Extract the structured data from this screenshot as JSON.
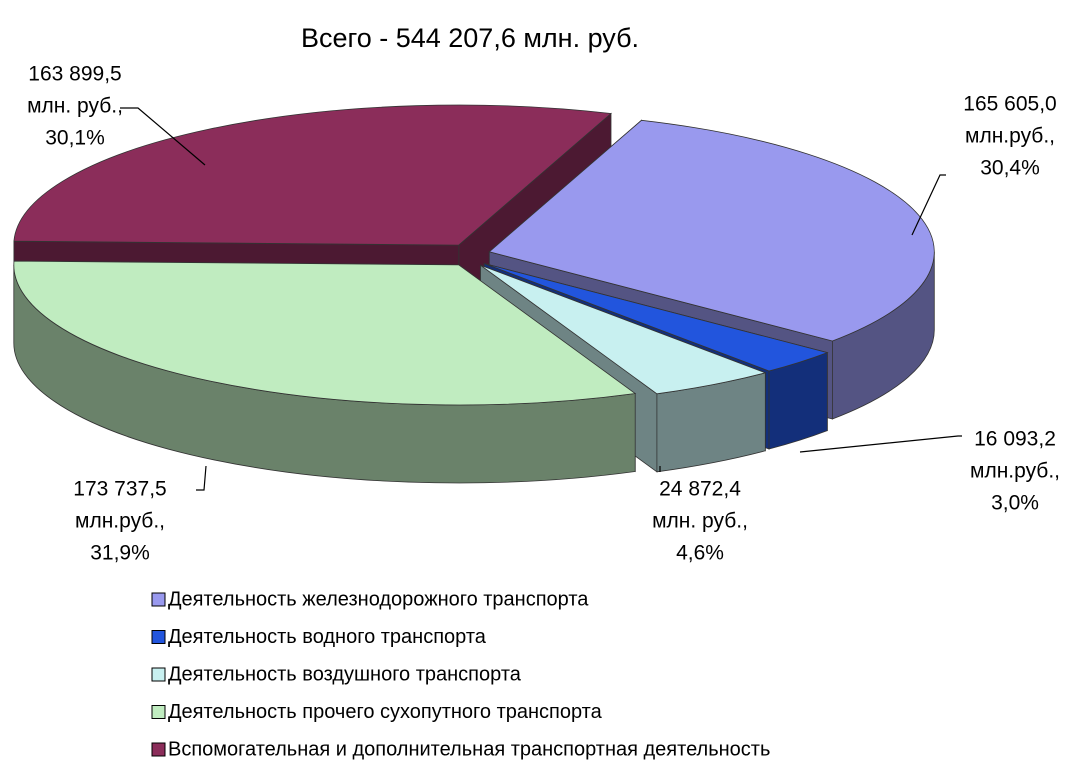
{
  "chart_data": {
    "type": "pie",
    "title": "Всего  - 544 207,6 млн. руб.",
    "categories": [
      "Деятельность железнодорожного транспорта",
      "Деятельность водного транспорта",
      "Деятельность воздушного транспорта",
      "Деятельность прочего сухопутного транспорта",
      "Вспомогательная и дополнительная транспортная деятельность"
    ],
    "values": [
      165605.0,
      16093.2,
      24872.4,
      173737.5,
      163899.5
    ],
    "value_labels": [
      [
        "165 605,0",
        "млн.руб.,",
        "30,4%"
      ],
      [
        "16 093,2",
        "млн.руб.,",
        "3,0%"
      ],
      [
        "24 872,4",
        "млн. руб.,",
        "4,6%"
      ],
      [
        "173 737,5",
        "млн.руб.,",
        "31,9%"
      ],
      [
        "163 899,5",
        "млн. руб.,",
        "30,1%"
      ]
    ],
    "colors": [
      "#9999ee",
      "#2255dd",
      "#c8f0f0",
      "#c0ecc0",
      "#8b2d5a"
    ],
    "legend": "bottom"
  }
}
